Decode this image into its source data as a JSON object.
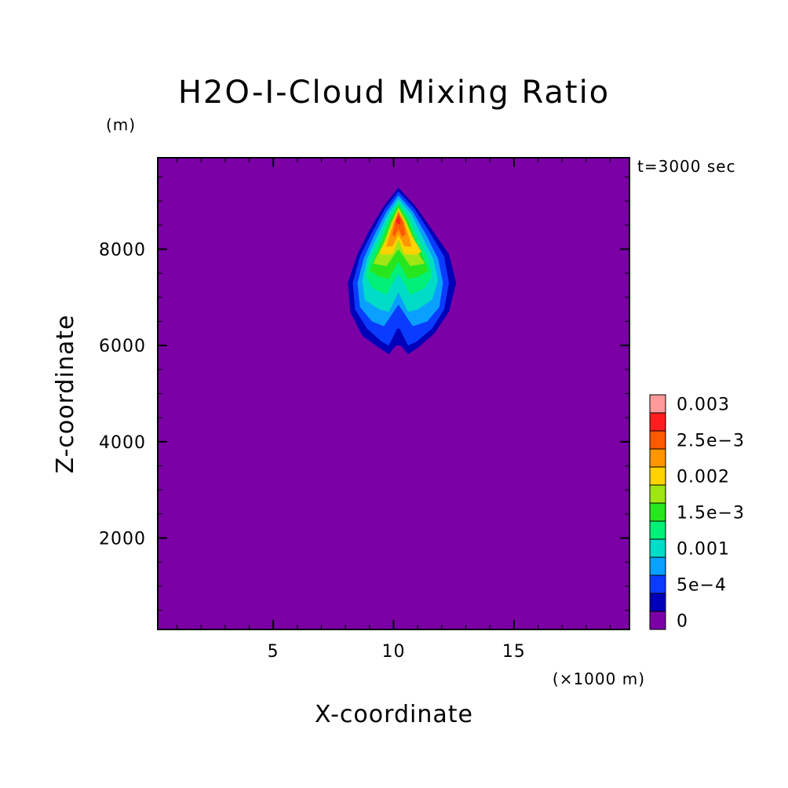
{
  "chart_data": {
    "type": "heatmap",
    "plot_kind": "filled contour",
    "title": "H2O-I-Cloud Mixing Ratio",
    "xlabel": "X-coordinate",
    "ylabel": "Z-coordinate",
    "x_units": "(×1000 m)",
    "y_units": "(m)",
    "time_label": "t=3000 sec",
    "xlim": [
      0.2,
      19.8
    ],
    "ylim": [
      100,
      9900
    ],
    "x_ticks": [
      5,
      10,
      15
    ],
    "y_ticks": [
      2000,
      4000,
      6000,
      8000
    ],
    "x_tick_labels": [
      "5",
      "10",
      "15"
    ],
    "y_tick_labels": [
      "2000",
      "4000",
      "6000",
      "8000"
    ],
    "background_level": 0,
    "colorbar": {
      "levels": [
        0,
        0.00025,
        0.0005,
        0.00075,
        0.001,
        0.00125,
        0.0015,
        0.00175,
        0.002,
        0.00225,
        0.0025,
        0.00275,
        0.003
      ],
      "colors": [
        "#7b00a6",
        "#0000b8",
        "#0a3cff",
        "#0aa0ff",
        "#00dcc8",
        "#00f078",
        "#28e61e",
        "#a0e614",
        "#ffd200",
        "#ff9600",
        "#ff5a00",
        "#ff1e1e",
        "#ff9a9a"
      ],
      "labels": [
        {
          "level": 0,
          "text": "0"
        },
        {
          "level": 0.0005,
          "text": "5e−4"
        },
        {
          "level": 0.001,
          "text": "0.001"
        },
        {
          "level": 0.0015,
          "text": "1.5e−3"
        },
        {
          "level": 0.002,
          "text": "0.002"
        },
        {
          "level": 0.0025,
          "text": "2.5e−3"
        },
        {
          "level": 0.003,
          "text": "0.003"
        }
      ]
    },
    "contours": [
      {
        "level": 0.00025,
        "points": [
          [
            10.2,
            9280
          ],
          [
            9.6,
            8900
          ],
          [
            9.0,
            8400
          ],
          [
            8.5,
            7900
          ],
          [
            8.1,
            7300
          ],
          [
            8.2,
            6700
          ],
          [
            8.7,
            6200
          ],
          [
            9.4,
            5950
          ],
          [
            9.8,
            5820
          ],
          [
            10.1,
            6000
          ],
          [
            10.3,
            6000
          ],
          [
            10.6,
            5820
          ],
          [
            11.0,
            5950
          ],
          [
            11.7,
            6250
          ],
          [
            12.3,
            6700
          ],
          [
            12.6,
            7300
          ],
          [
            12.3,
            7900
          ],
          [
            11.6,
            8400
          ],
          [
            10.9,
            8900
          ]
        ]
      },
      {
        "level": 0.0005,
        "points": [
          [
            10.2,
            9200
          ],
          [
            9.65,
            8850
          ],
          [
            9.1,
            8350
          ],
          [
            8.6,
            7850
          ],
          [
            8.3,
            7300
          ],
          [
            8.4,
            6750
          ],
          [
            8.9,
            6350
          ],
          [
            9.5,
            6080
          ],
          [
            9.8,
            6000
          ],
          [
            10.15,
            6350
          ],
          [
            10.25,
            6350
          ],
          [
            10.6,
            6000
          ],
          [
            10.95,
            6080
          ],
          [
            11.6,
            6350
          ],
          [
            12.1,
            6750
          ],
          [
            12.3,
            7300
          ],
          [
            12.1,
            7850
          ],
          [
            11.5,
            8350
          ],
          [
            10.85,
            8850
          ]
        ]
      },
      {
        "level": 0.00075,
        "points": [
          [
            10.2,
            9120
          ],
          [
            9.7,
            8780
          ],
          [
            9.2,
            8300
          ],
          [
            8.75,
            7800
          ],
          [
            8.5,
            7300
          ],
          [
            8.6,
            6800
          ],
          [
            9.1,
            6500
          ],
          [
            9.6,
            6400
          ],
          [
            10.2,
            6850
          ],
          [
            10.8,
            6400
          ],
          [
            11.4,
            6500
          ],
          [
            11.9,
            6800
          ],
          [
            12.05,
            7300
          ],
          [
            11.85,
            7800
          ],
          [
            11.35,
            8300
          ],
          [
            10.8,
            8780
          ]
        ]
      },
      {
        "level": 0.001,
        "points": [
          [
            10.2,
            9050
          ],
          [
            9.75,
            8720
          ],
          [
            9.3,
            8250
          ],
          [
            8.9,
            7800
          ],
          [
            8.7,
            7350
          ],
          [
            8.8,
            6950
          ],
          [
            9.4,
            6750
          ],
          [
            9.8,
            6700
          ],
          [
            10.2,
            7100
          ],
          [
            10.6,
            6700
          ],
          [
            11.0,
            6750
          ],
          [
            11.6,
            6950
          ],
          [
            11.85,
            7350
          ],
          [
            11.65,
            7800
          ],
          [
            11.2,
            8250
          ],
          [
            10.75,
            8720
          ]
        ]
      },
      {
        "level": 0.00125,
        "points": [
          [
            10.2,
            8980
          ],
          [
            9.8,
            8650
          ],
          [
            9.4,
            8200
          ],
          [
            9.0,
            7800
          ],
          [
            8.85,
            7450
          ],
          [
            9.1,
            7200
          ],
          [
            9.7,
            7050
          ],
          [
            10.2,
            7500
          ],
          [
            10.7,
            7050
          ],
          [
            11.3,
            7200
          ],
          [
            11.6,
            7450
          ],
          [
            11.45,
            7800
          ],
          [
            11.05,
            8200
          ],
          [
            10.65,
            8650
          ]
        ]
      },
      {
        "level": 0.0015,
        "points": [
          [
            10.2,
            8920
          ],
          [
            9.85,
            8600
          ],
          [
            9.5,
            8150
          ],
          [
            9.2,
            7800
          ],
          [
            9.0,
            7550
          ],
          [
            9.4,
            7430
          ],
          [
            9.8,
            7380
          ],
          [
            10.2,
            7750
          ],
          [
            10.6,
            7380
          ],
          [
            11.0,
            7430
          ],
          [
            11.45,
            7550
          ],
          [
            11.25,
            7800
          ],
          [
            10.95,
            8150
          ],
          [
            10.6,
            8600
          ]
        ]
      },
      {
        "level": 0.00175,
        "points": [
          [
            10.2,
            8870
          ],
          [
            9.9,
            8550
          ],
          [
            9.6,
            8150
          ],
          [
            9.3,
            7850
          ],
          [
            9.15,
            7700
          ],
          [
            9.7,
            7650
          ],
          [
            10.2,
            8000
          ],
          [
            10.7,
            7650
          ],
          [
            11.3,
            7700
          ],
          [
            11.1,
            7850
          ],
          [
            10.85,
            8150
          ],
          [
            10.55,
            8550
          ]
        ]
      },
      {
        "level": 0.002,
        "points": [
          [
            10.2,
            8830
          ],
          [
            9.95,
            8550
          ],
          [
            9.7,
            8200
          ],
          [
            9.45,
            7950
          ],
          [
            9.5,
            7880
          ],
          [
            9.95,
            7900
          ],
          [
            10.2,
            8200
          ],
          [
            10.45,
            7900
          ],
          [
            10.95,
            7880
          ],
          [
            11.15,
            7950
          ],
          [
            10.85,
            8200
          ],
          [
            10.5,
            8550
          ]
        ]
      },
      {
        "level": 0.00225,
        "points": [
          [
            10.2,
            8800
          ],
          [
            10.0,
            8550
          ],
          [
            9.8,
            8250
          ],
          [
            9.7,
            8050
          ],
          [
            9.95,
            8060
          ],
          [
            10.2,
            8300
          ],
          [
            10.45,
            8060
          ],
          [
            10.75,
            8050
          ],
          [
            10.65,
            8250
          ],
          [
            10.45,
            8550
          ]
        ]
      },
      {
        "level": 0.0025,
        "points": [
          [
            10.2,
            8760
          ],
          [
            10.05,
            8550
          ],
          [
            9.95,
            8300
          ],
          [
            10.05,
            8260
          ],
          [
            10.2,
            8420
          ],
          [
            10.35,
            8260
          ],
          [
            10.5,
            8300
          ],
          [
            10.4,
            8550
          ]
        ]
      },
      {
        "level": 0.00275,
        "points": [
          [
            10.2,
            8700
          ],
          [
            10.1,
            8580
          ],
          [
            10.15,
            8500
          ],
          [
            10.2,
            8540
          ],
          [
            10.25,
            8500
          ],
          [
            10.3,
            8580
          ]
        ]
      }
    ]
  }
}
